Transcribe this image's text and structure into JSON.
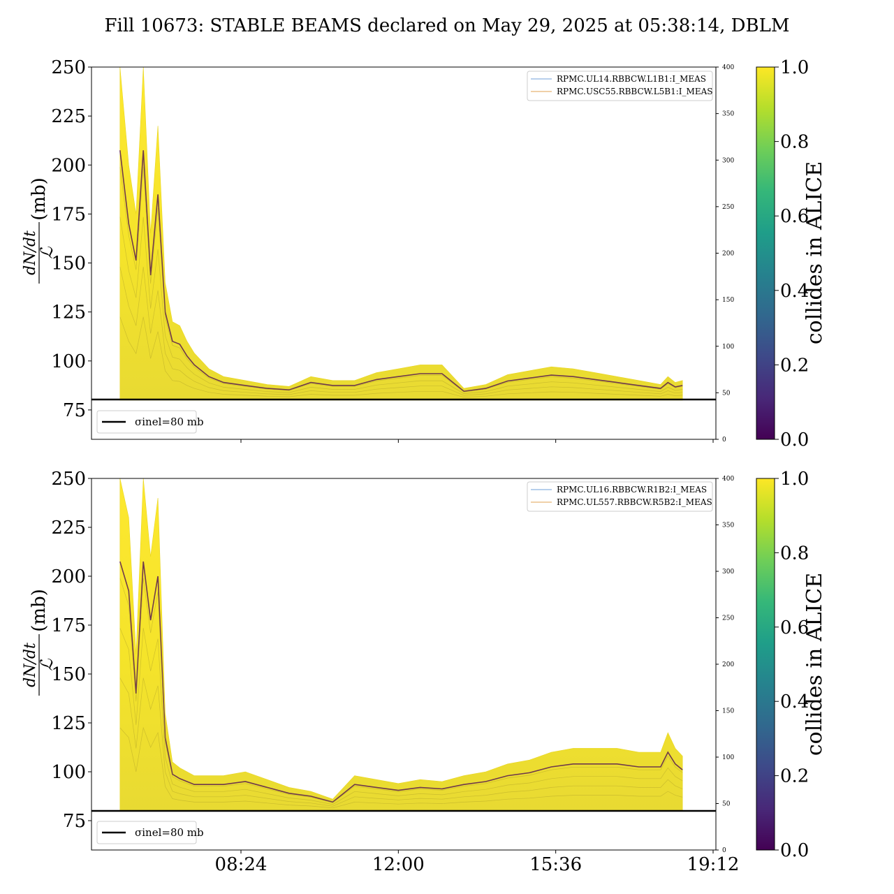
{
  "title": "Fill 10673: STABLE BEAMS declared on May 29, 2025 at 05:38:14, DBLM",
  "ylabel_fraction_num": "dN/dt",
  "ylabel_fraction_den": "ℒ",
  "ylabel_unit": "(mb)",
  "colorbar": {
    "label": "collides in ALICE",
    "ticks": [
      "0.0",
      "0.2",
      "0.4",
      "0.6",
      "0.8",
      "1.0"
    ],
    "colors": [
      "#440154",
      "#482878",
      "#3e4989",
      "#31688e",
      "#26828e",
      "#1f9e89",
      "#35b779",
      "#6ece58",
      "#b5de2b",
      "#fde725"
    ]
  },
  "chart_data": [
    {
      "type": "line",
      "panel": "top",
      "ylim": [
        60,
        250
      ],
      "yticks": [
        75,
        100,
        125,
        150,
        175,
        200,
        225,
        250
      ],
      "y2lim": [
        0,
        400
      ],
      "y2ticks": [
        0,
        50,
        100,
        150,
        200,
        250,
        300,
        350,
        400
      ],
      "xticks": [
        "08:24",
        "12:00",
        "15:36",
        "19:12"
      ],
      "xticks_visible": false,
      "legend": [
        "RPMC.UL14.RBBCW.L1B1:I_MEAS",
        "RPMC.USC55.RBBCW.L5B1:I_MEAS"
      ],
      "legend_colors": [
        "#6f9fd8",
        "#e0a050"
      ],
      "reference_line": {
        "label": "σinel=80 mb",
        "y": 80
      },
      "series": [
        {
          "x": [
            "05:38",
            "05:50",
            "06:00",
            "06:10",
            "06:20",
            "06:30",
            "06:40",
            "06:50",
            "07:00",
            "07:10",
            "07:20",
            "07:40",
            "08:00",
            "08:30",
            "09:00",
            "09:30",
            "10:00",
            "10:30",
            "11:00",
            "11:30",
            "12:00",
            "12:30",
            "13:00",
            "13:30",
            "14:00",
            "14:30",
            "15:00",
            "15:30",
            "16:00",
            "16:30",
            "17:00",
            "17:30",
            "18:00",
            "18:10",
            "18:20",
            "18:30"
          ],
          "y": [
            250,
            200,
            175,
            250,
            165,
            220,
            140,
            120,
            118,
            110,
            104,
            96,
            92,
            90,
            88,
            87,
            92,
            90,
            90,
            94,
            96,
            98,
            98,
            86,
            88,
            93,
            95,
            97,
            96,
            94,
            92,
            90,
            88,
            92,
            89,
            90
          ]
        }
      ]
    },
    {
      "type": "line",
      "panel": "bottom",
      "ylim": [
        60,
        250
      ],
      "yticks": [
        75,
        100,
        125,
        150,
        175,
        200,
        225,
        250
      ],
      "y2lim": [
        0,
        400
      ],
      "y2ticks": [
        0,
        50,
        100,
        150,
        200,
        250,
        300,
        350,
        400
      ],
      "xticks": [
        "08:24",
        "12:00",
        "15:36",
        "19:12"
      ],
      "xticks_visible": true,
      "legend": [
        "RPMC.UL16.RBBCW.R1B2:I_MEAS",
        "RPMC.UL557.RBBCW.R5B2:I_MEAS"
      ],
      "legend_colors": [
        "#6f9fd8",
        "#e0a050"
      ],
      "reference_line": {
        "label": "σinel=80 mb",
        "y": 80
      },
      "series": [
        {
          "x": [
            "05:38",
            "05:50",
            "06:00",
            "06:10",
            "06:20",
            "06:30",
            "06:40",
            "06:50",
            "07:00",
            "07:10",
            "07:20",
            "07:40",
            "08:00",
            "08:30",
            "09:00",
            "09:30",
            "10:00",
            "10:30",
            "11:00",
            "11:30",
            "12:00",
            "12:30",
            "13:00",
            "13:30",
            "14:00",
            "14:30",
            "15:00",
            "15:30",
            "16:00",
            "16:30",
            "17:00",
            "17:30",
            "18:00",
            "18:10",
            "18:20",
            "18:30"
          ],
          "y": [
            250,
            230,
            160,
            250,
            210,
            240,
            130,
            105,
            102,
            100,
            98,
            98,
            98,
            100,
            96,
            92,
            90,
            86,
            98,
            96,
            94,
            96,
            95,
            98,
            100,
            104,
            106,
            110,
            112,
            112,
            112,
            110,
            110,
            120,
            112,
            108
          ]
        }
      ]
    }
  ]
}
